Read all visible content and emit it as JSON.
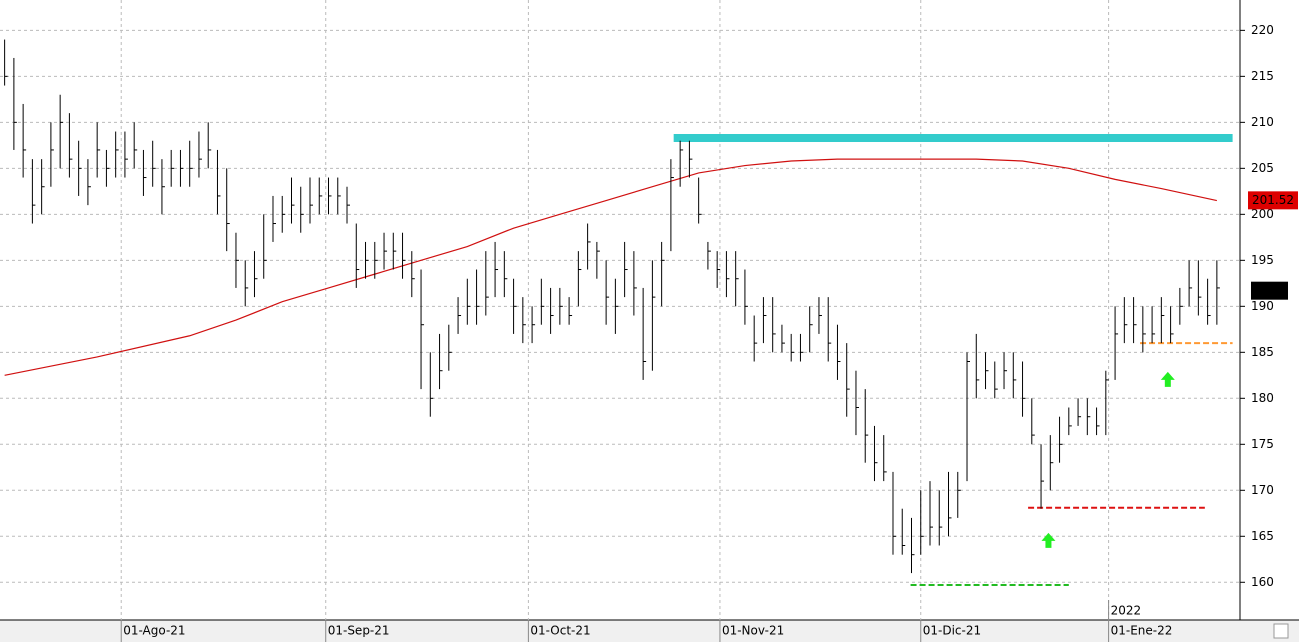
{
  "chart_data": {
    "type": "ohlc",
    "xlim": [
      -0.5,
      133.5
    ],
    "xticks": [
      {
        "value": 12.6,
        "label": "01-Ago-21"
      },
      {
        "value": 34.7,
        "label": "01-Sep-21"
      },
      {
        "value": 56.6,
        "label": "01-Oct-21"
      },
      {
        "value": 77.3,
        "label": "01-Nov-21"
      },
      {
        "value": 99,
        "label": "01-Dic-21"
      },
      {
        "value": 119.3,
        "label": "01-Ene-22"
      }
    ],
    "year_label": {
      "value": 119.3,
      "label": "2022"
    },
    "ylim": [
      155.9,
      223.3
    ],
    "yticks": [
      160,
      165,
      170,
      175,
      180,
      185,
      190,
      195,
      200,
      205,
      210,
      215,
      220
    ],
    "grid": true,
    "bar_color": "#000000",
    "highs": [
      219,
      217,
      212,
      206,
      206,
      210,
      213,
      211,
      208,
      206,
      210,
      207,
      209,
      209,
      210,
      207,
      208,
      206,
      207,
      207,
      208,
      209,
      210,
      207,
      205,
      198,
      195,
      196,
      200,
      202,
      202,
      204,
      203,
      204,
      204,
      204,
      204,
      203,
      199,
      197,
      197,
      198,
      198,
      198,
      196,
      194,
      185,
      187,
      188,
      191,
      193,
      194,
      196,
      197,
      196,
      193,
      191,
      190,
      193,
      192,
      192,
      191,
      196,
      199,
      197,
      195,
      193,
      197,
      196,
      192,
      195,
      197,
      206,
      208,
      208,
      204,
      197,
      196,
      196,
      196,
      194,
      189,
      191,
      191,
      188,
      187,
      187,
      190,
      191,
      191,
      188,
      186,
      183,
      181,
      177,
      176,
      172,
      168,
      167,
      170,
      171,
      170,
      172,
      172,
      185,
      187,
      185,
      184,
      185,
      185,
      184,
      180,
      175,
      176,
      178,
      179,
      180,
      180,
      179,
      183,
      190,
      191,
      191,
      190,
      190,
      191,
      190,
      192,
      195,
      195,
      193,
      195
    ],
    "lows": [
      214,
      207,
      204,
      199,
      200,
      203,
      205,
      204,
      202,
      201,
      204,
      203,
      204,
      204,
      205,
      202,
      203,
      200,
      203,
      203,
      203,
      204,
      205,
      200,
      196,
      192,
      190,
      191,
      193,
      197,
      198,
      199,
      198,
      199,
      200,
      200,
      200,
      199,
      192,
      193,
      193,
      194,
      194,
      193,
      191,
      181,
      178,
      181,
      183,
      187,
      188,
      188,
      189,
      191,
      191,
      187,
      186,
      186,
      188,
      187,
      188,
      188,
      190,
      194,
      193,
      188,
      187,
      191,
      189,
      182,
      183,
      190,
      196,
      203,
      204,
      199,
      194,
      192,
      191,
      190,
      188,
      184,
      186,
      185,
      185,
      184,
      184,
      185,
      187,
      184,
      182,
      178,
      176,
      173,
      171,
      171,
      163,
      163,
      161,
      163,
      164,
      164,
      165,
      167,
      171,
      180,
      181,
      180,
      181,
      180,
      178,
      175,
      168,
      170,
      173,
      176,
      177,
      176,
      176,
      176,
      182,
      186,
      186,
      185,
      186,
      186,
      186,
      188,
      190,
      189,
      188,
      188
    ],
    "closes": [
      215,
      210,
      207,
      201,
      203,
      207,
      210,
      206,
      205,
      203,
      207,
      205,
      207,
      206,
      207,
      204,
      205,
      203,
      205,
      205,
      205,
      206,
      207,
      202,
      199,
      195,
      192,
      193,
      195,
      199,
      200,
      201,
      200,
      201,
      202,
      202,
      202,
      201,
      194,
      195,
      195,
      196,
      196,
      195,
      193,
      188,
      180,
      183,
      185,
      189,
      190,
      190,
      191,
      194,
      193,
      190,
      188,
      188,
      190,
      189,
      190,
      189,
      194,
      197,
      196,
      191,
      190,
      194,
      192,
      184,
      191,
      195,
      204,
      207,
      206,
      200,
      196,
      194,
      193,
      193,
      190,
      186,
      189,
      187,
      186,
      185,
      185,
      188,
      189,
      186,
      184,
      181,
      179,
      176,
      173,
      172,
      165,
      164,
      163,
      165,
      166,
      166,
      167,
      170,
      184,
      182,
      183,
      181,
      183,
      182,
      180,
      176,
      171,
      173,
      175,
      177,
      178,
      178,
      177,
      182,
      187,
      188,
      188,
      187,
      187,
      189,
      187,
      190,
      192,
      191,
      189,
      192
    ],
    "moving_average": {
      "color": "#d01010",
      "x": [
        0,
        10,
        20,
        25,
        30,
        35,
        40,
        45,
        50,
        55,
        60,
        65,
        70,
        75,
        80,
        85,
        90,
        95,
        100,
        105,
        110,
        115,
        120,
        125,
        131
      ],
      "values": [
        182.5,
        184.5,
        186.8,
        188.5,
        190.5,
        192,
        193.5,
        195,
        196.5,
        198.5,
        200,
        201.5,
        203,
        204.5,
        205.3,
        205.8,
        206,
        206,
        206,
        206,
        205.8,
        205,
        203.8,
        202.8,
        201.5
      ]
    },
    "levels": [
      {
        "value": 208.3,
        "x": [
          72.3,
          132.7
        ],
        "color": "#33cccc",
        "style": "solid"
      },
      {
        "value": 186,
        "x": [
          122.7,
          132.7
        ],
        "color": "#ff9933",
        "style": "dashed"
      },
      {
        "value": 168.1,
        "x": [
          110.6,
          129.7
        ],
        "color": "#dd1111",
        "style": "dashed"
      },
      {
        "value": 159.7,
        "x": [
          97.9,
          115
        ],
        "color": "#22bb22",
        "style": "dashed"
      }
    ],
    "arrows": [
      {
        "x": 112.8,
        "value": 164.5,
        "color": "#22ee22"
      },
      {
        "x": 125.7,
        "value": 182,
        "color": "#22ee22"
      }
    ],
    "ma_last": 201.52,
    "last_price": 191.7
  }
}
